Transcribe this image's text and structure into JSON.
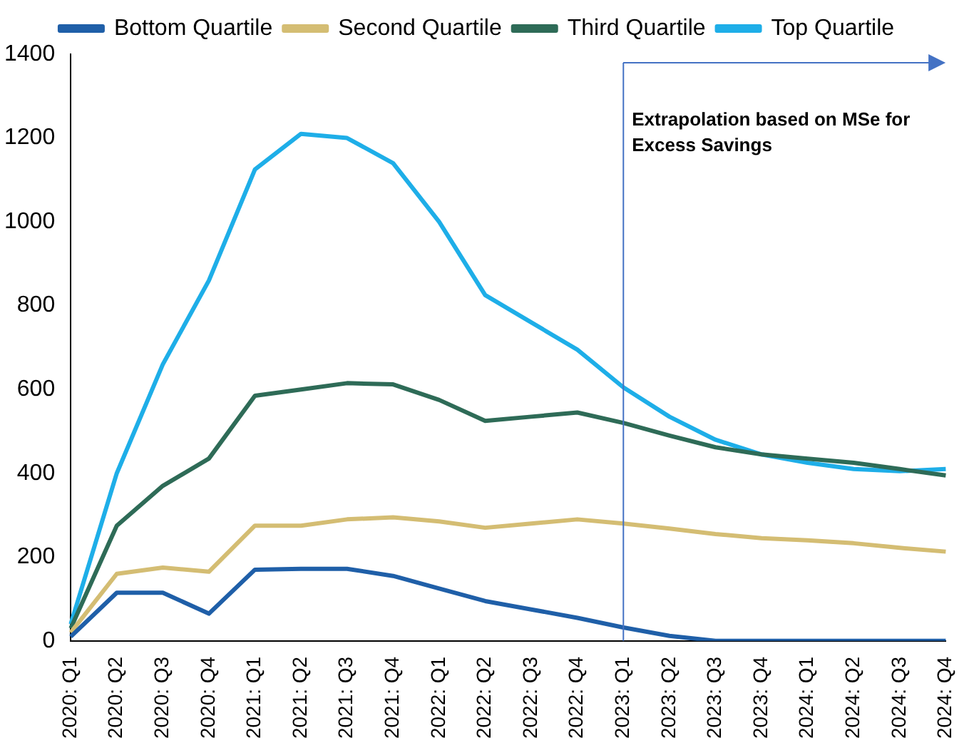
{
  "chart_data": {
    "type": "line",
    "categories": [
      "2020: Q1",
      "2020: Q2",
      "2020: Q3",
      "2020: Q4",
      "2021: Q1",
      "2021: Q2",
      "2021: Q3",
      "2021: Q4",
      "2022: Q1",
      "2022: Q2",
      "2022: Q3",
      "2022: Q4",
      "2023: Q1",
      "2023: Q2",
      "2023: Q3",
      "2023: Q4",
      "2024: Q1",
      "2024: Q2",
      "2024: Q3",
      "2024: Q4"
    ],
    "series": [
      {
        "name": "Bottom Quartile",
        "color": "#1f5fa8",
        "values": [
          10,
          115,
          115,
          65,
          170,
          172,
          172,
          155,
          125,
          95,
          75,
          55,
          32,
          12,
          0,
          0,
          0,
          0,
          0,
          0
        ]
      },
      {
        "name": "Second Quartile",
        "color": "#d4bd73",
        "values": [
          20,
          160,
          175,
          165,
          275,
          275,
          290,
          295,
          285,
          270,
          280,
          290,
          280,
          268,
          255,
          245,
          240,
          233,
          222,
          213
        ]
      },
      {
        "name": "Third Quartile",
        "color": "#2e6b57",
        "values": [
          30,
          275,
          370,
          435,
          585,
          600,
          615,
          612,
          575,
          525,
          535,
          545,
          520,
          490,
          462,
          445,
          435,
          425,
          410,
          395
        ]
      },
      {
        "name": "Top Quartile",
        "color": "#1eaee8",
        "values": [
          40,
          400,
          660,
          860,
          1125,
          1210,
          1200,
          1140,
          1000,
          825,
          760,
          695,
          605,
          535,
          480,
          445,
          425,
          410,
          405,
          410
        ]
      }
    ],
    "ylim": [
      0,
      1400
    ],
    "yticks": [
      0,
      200,
      400,
      600,
      800,
      1000,
      1200,
      1400
    ],
    "grid": false,
    "legend": "top",
    "marker": "none",
    "line_style": "solid",
    "ref_lines": [
      {
        "axis": "x",
        "value": "2023: Q1",
        "label": "Extrapolation based on MSe for Excess Savings",
        "color": "#4472c4"
      }
    ]
  }
}
